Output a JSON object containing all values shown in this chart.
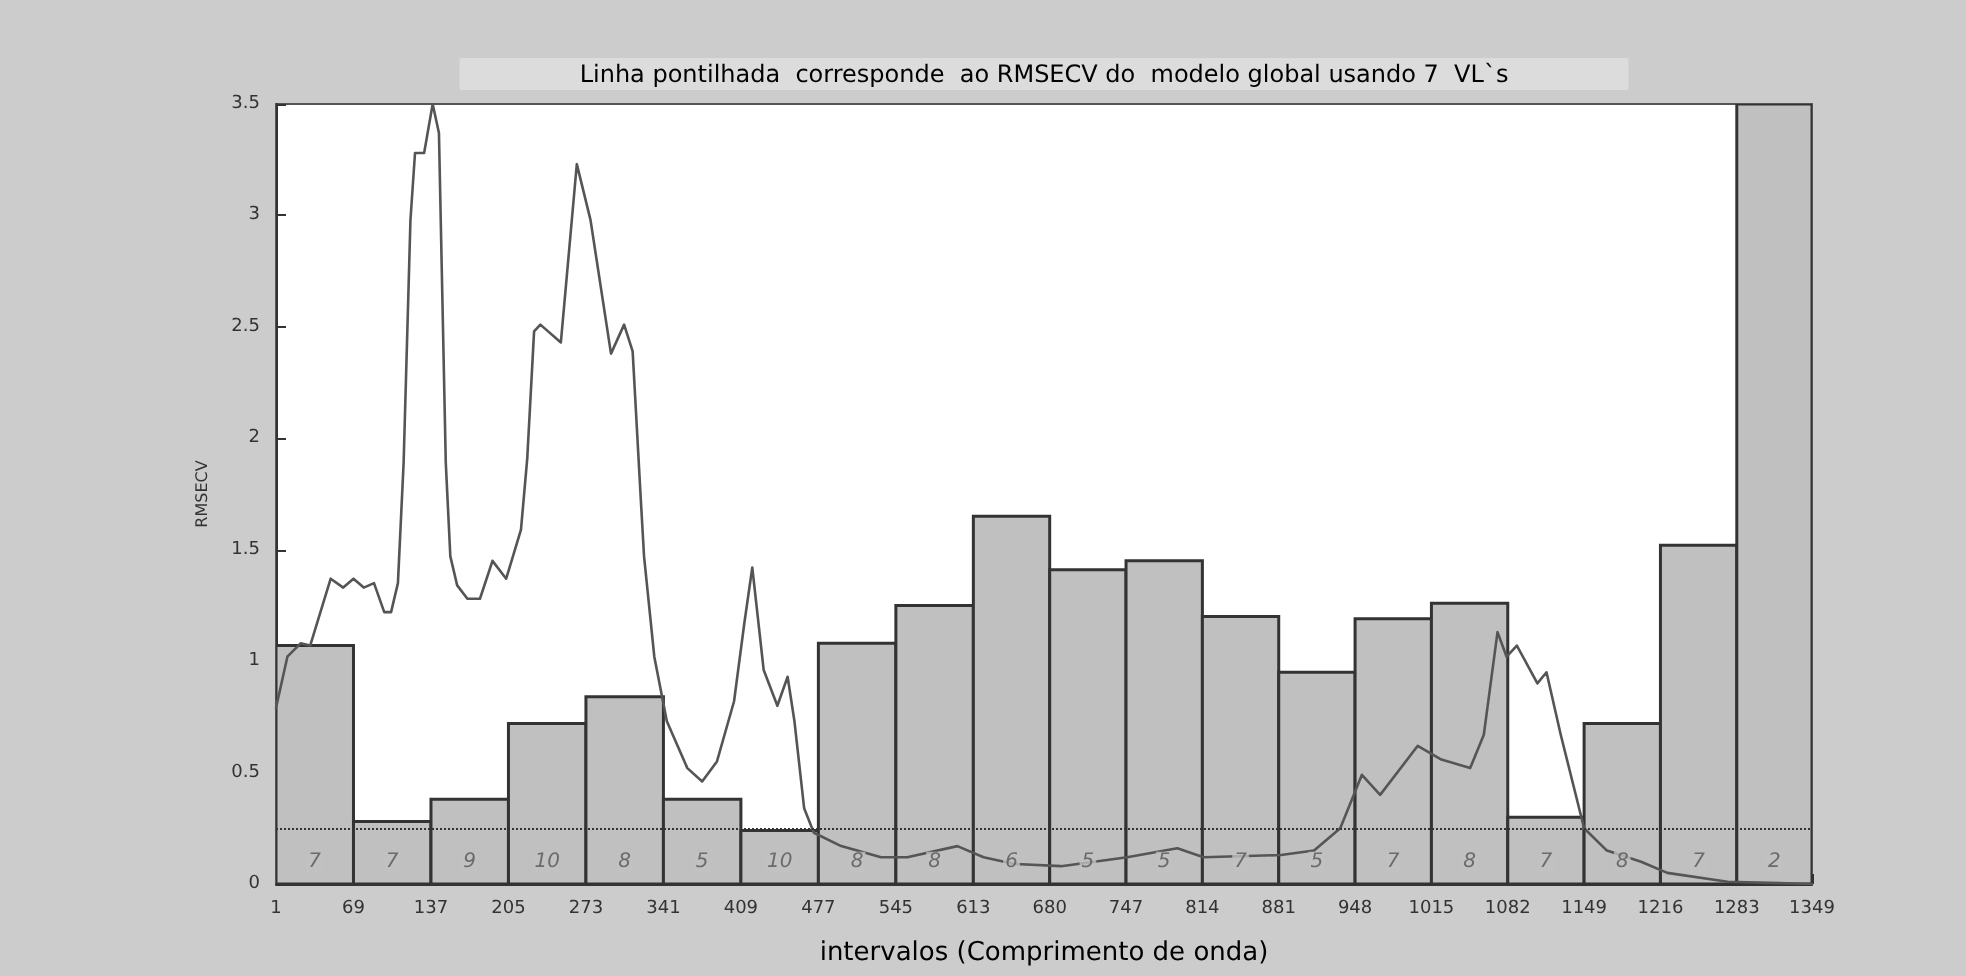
{
  "chart_data": {
    "type": "histogram",
    "title": "Linha pontilhada  corresponde  ao RMSECV do  modelo global usando 7  VL`s",
    "xlabel": "intervalos (Comprimento de onda)",
    "ylabel": "RMSECV",
    "bins": [
      1,
      69,
      137,
      205,
      273,
      341,
      409,
      477,
      545,
      613,
      680,
      747,
      814,
      881,
      948,
      1015,
      1082,
      1149,
      1216,
      1283,
      1349
    ],
    "values": [
      1.07,
      0.28,
      0.38,
      0.72,
      0.84,
      0.38,
      0.24,
      1.08,
      1.25,
      1.65,
      1.41,
      1.45,
      1.2,
      0.95,
      1.19,
      1.26,
      0.3,
      0.72,
      1.52,
      3.5
    ],
    "annotations": [
      {
        "text": "7",
        "x": 35,
        "y": 0.1
      },
      {
        "text": "7",
        "x": 103,
        "y": 0.1
      },
      {
        "text": "9",
        "x": 171,
        "y": 0.1
      },
      {
        "text": "10",
        "x": 239,
        "y": 0.1
      },
      {
        "text": "8",
        "x": 307,
        "y": 0.1
      },
      {
        "text": "5",
        "x": 375,
        "y": 0.1
      },
      {
        "text": "10",
        "x": 443,
        "y": 0.1
      },
      {
        "text": "8",
        "x": 511,
        "y": 0.1
      },
      {
        "text": "8",
        "x": 579,
        "y": 0.1
      },
      {
        "text": "6",
        "x": 646.5,
        "y": 0.1
      },
      {
        "text": "5",
        "x": 713.5,
        "y": 0.1
      },
      {
        "text": "5",
        "x": 780.5,
        "y": 0.1
      },
      {
        "text": "7",
        "x": 847.5,
        "y": 0.1
      },
      {
        "text": "5",
        "x": 914.5,
        "y": 0.1
      },
      {
        "text": "7",
        "x": 981.5,
        "y": 0.1
      },
      {
        "text": "8",
        "x": 1048.5,
        "y": 0.1
      },
      {
        "text": "7",
        "x": 1115.5,
        "y": 0.1
      },
      {
        "text": "8",
        "x": 1182.5,
        "y": 0.1
      },
      {
        "text": "7",
        "x": 1249.5,
        "y": 0.1
      },
      {
        "text": "2",
        "x": 1316,
        "y": 0.1
      }
    ],
    "color": "#c0c0c0",
    "series": [
      {
        "type": "line",
        "color": "#555555",
        "x": [
          1,
          11,
          22.6,
          31,
          49,
          60,
          69,
          78,
          87,
          96,
          102,
          108,
          113,
          119,
          123,
          131,
          138.5,
          144,
          150,
          154,
          160,
          169,
          180,
          191,
          203,
          216,
          221.5,
          227.5,
          233,
          251,
          265,
          277,
          295,
          306.5,
          314,
          321,
          324,
          333,
          344,
          362,
          375,
          388,
          403,
          412,
          419,
          429,
          441,
          450,
          456,
          464.5,
          473,
          497,
          532,
          555,
          599,
          622,
          649,
          690,
          748,
          792,
          815,
          883,
          912,
          935,
          954,
          970,
          1003,
          1023,
          1049,
          1061,
          1073,
          1081,
          1090,
          1108,
          1116,
          1128.5,
          1149,
          1169,
          1199,
          1222,
          1275,
          1349
        ],
        "values": [
          0.79,
          1.02,
          1.08,
          1.07,
          1.37,
          1.33,
          1.37,
          1.33,
          1.35,
          1.22,
          1.22,
          1.35,
          1.89,
          2.98,
          3.28,
          3.28,
          3.5,
          3.37,
          1.89,
          1.47,
          1.34,
          1.28,
          1.28,
          1.45,
          1.37,
          1.59,
          1.91,
          2.48,
          2.51,
          2.43,
          3.23,
          2.98,
          2.38,
          2.51,
          2.39,
          1.74,
          1.47,
          1.02,
          0.73,
          0.52,
          0.46,
          0.55,
          0.82,
          1.17,
          1.42,
          0.96,
          0.8,
          0.93,
          0.73,
          0.34,
          0.23,
          0.17,
          0.12,
          0.12,
          0.17,
          0.12,
          0.09,
          0.08,
          0.12,
          0.16,
          0.12,
          0.13,
          0.15,
          0.25,
          0.49,
          0.4,
          0.62,
          0.56,
          0.52,
          0.67,
          1.13,
          1.02,
          1.07,
          0.9,
          0.95,
          0.67,
          0.25,
          0.15,
          0.1,
          0.05,
          0.01,
          0
        ]
      }
    ],
    "ref_lines": [
      {
        "axis": "y",
        "value": 0.25,
        "line_style": "dotted",
        "color": "#333333"
      }
    ],
    "xlim": [
      1,
      1349
    ],
    "ylim": [
      0,
      3.5
    ],
    "xticks": [
      1,
      69,
      137,
      205,
      273,
      341,
      409,
      477,
      545,
      613,
      680,
      747,
      814,
      881,
      948,
      1015,
      1082,
      1149,
      1216,
      1283,
      1349
    ],
    "yticks": [
      0,
      0.5,
      1,
      1.5,
      2,
      2.5,
      3,
      3.5
    ],
    "grid": false
  }
}
